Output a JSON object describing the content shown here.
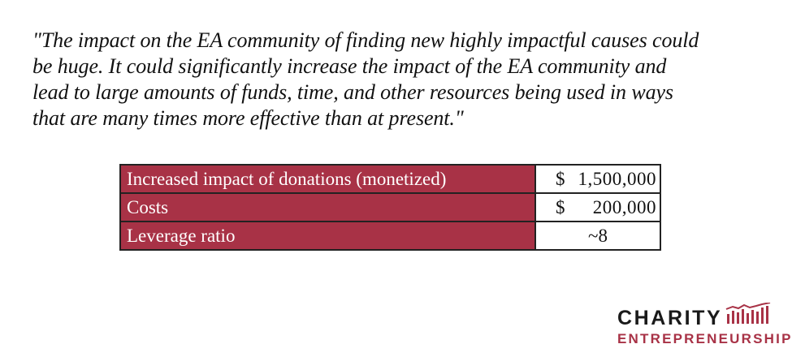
{
  "quote": {
    "lines": [
      "\"The impact on the EA community of finding new highly impactful causes could",
      "be huge. It could significantly increase the impact of the EA community and",
      "lead to large amounts of funds, time, and other resources being used in ways",
      "that are many times more effective than at present.\""
    ]
  },
  "table": {
    "rows": [
      {
        "label": "Increased impact of donations (monetized)",
        "currency": "$",
        "amount": "1,500,000"
      },
      {
        "label": "Costs",
        "currency": "$",
        "amount": "200,000"
      },
      {
        "label": "Leverage ratio",
        "value": "~8"
      }
    ]
  },
  "logo": {
    "word1": "CHARITY",
    "word2": "ENTREPRENEURSHIP",
    "icon": "bar-chart-icon"
  },
  "colors": {
    "accent": "#a83246",
    "text": "#111111",
    "background": "#ffffff"
  }
}
